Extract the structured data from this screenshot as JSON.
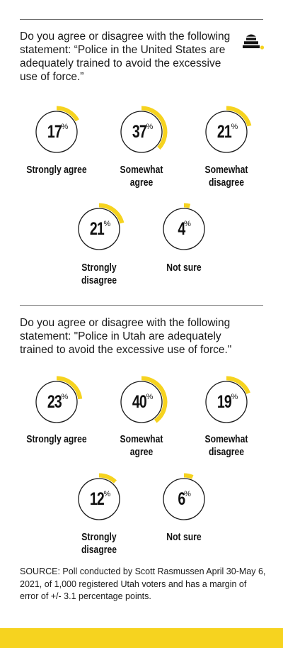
{
  "colors": {
    "accent": "#f6d31f",
    "ring": "#1a1a1a",
    "background": "#ffffff"
  },
  "logo": {
    "icon": "beehive-icon"
  },
  "source": "SOURCE: Poll conducted by Scott Rasmussen April 30-May 6, 2021, of 1,000 registered Utah voters and has a margin of error of +/- 3.1 percentage points.",
  "chart_data": [
    {
      "type": "donut",
      "title": "Do you agree or disagree with the following statement: “Police in the United States are adequately trained to avoid the excessive use of force.”",
      "unit": "%",
      "categories": [
        "Strongly agree",
        "Somewhat agree",
        "Somewhat disagree",
        "Strongly disagree",
        "Not sure"
      ],
      "values": [
        17,
        37,
        21,
        21,
        4
      ]
    },
    {
      "type": "donut",
      "title": "Do you agree or disagree with the following statement: \"Police in Utah are adequately trained to avoid the excessive use of force.\"",
      "unit": "%",
      "categories": [
        "Strongly agree",
        "Somewhat agree",
        "Somewhat disagree",
        "Strongly disagree",
        "Not sure"
      ],
      "values": [
        23,
        40,
        19,
        12,
        6
      ]
    }
  ]
}
